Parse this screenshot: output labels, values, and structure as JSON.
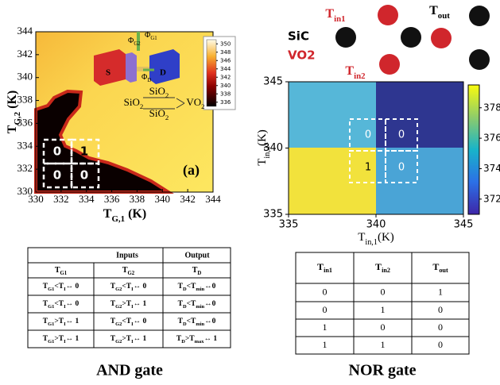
{
  "and_gate": {
    "heatmap": {
      "xlabel": [
        "T",
        "G,1",
        " (K)"
      ],
      "ylabel": [
        "T",
        "G,2",
        " (K)"
      ],
      "xlim": [
        330,
        344
      ],
      "ylim": [
        330,
        344
      ],
      "xticks": [
        330,
        332,
        334,
        336,
        338,
        340,
        342,
        344
      ],
      "yticks": [
        330,
        332,
        334,
        336,
        338,
        340,
        342,
        344
      ],
      "colorbar_lim": [
        335,
        351
      ],
      "colorbar_ticks": [
        336,
        338,
        340,
        342,
        344,
        346,
        348,
        350
      ],
      "cell_labels": [
        "0",
        "1",
        "0",
        "0"
      ],
      "panel_label": "(a)",
      "inset": {
        "source": "S",
        "drain": "D",
        "phi_g2": [
          "Φ",
          "G2"
        ],
        "phi_g1": [
          "Φ",
          "G1"
        ],
        "phi_d": [
          "Φ",
          "D"
        ],
        "oxide_top": [
          "SiO",
          "2"
        ],
        "oxide_left": [
          "SiO",
          "2"
        ],
        "oxide_bottom": [
          "SiO",
          "2"
        ],
        "vo2": [
          "VO",
          "2"
        ]
      }
    },
    "table": {
      "group_headers": [
        "Inputs",
        "Output"
      ],
      "headers": [
        [
          "T",
          "G1"
        ],
        [
          "T",
          "G2"
        ],
        [
          "T",
          "D"
        ]
      ],
      "rows": [
        [
          [
            "T",
            "G1",
            "<T",
            "I",
            "↔ 0"
          ],
          [
            "T",
            "G2",
            "<T",
            "I",
            "↔ 0"
          ],
          [
            "T",
            "D",
            "<T",
            "min",
            "↔0"
          ]
        ],
        [
          [
            "T",
            "G1",
            "<T",
            "I",
            "↔ 0"
          ],
          [
            "T",
            "G2",
            ">T",
            "I",
            "↔ 1"
          ],
          [
            "T",
            "D",
            "<T",
            "min",
            "↔0"
          ]
        ],
        [
          [
            "T",
            "G1",
            ">T",
            "I",
            "↔ 1"
          ],
          [
            "T",
            "G2",
            "<T",
            "I",
            "↔ 0"
          ],
          [
            "T",
            "D",
            "<T",
            "min",
            "↔0"
          ]
        ],
        [
          [
            "T",
            "G1",
            ">T",
            "I",
            "↔ 1"
          ],
          [
            "T",
            "G2",
            ">T",
            "I",
            "↔ 1"
          ],
          [
            "T",
            "D",
            ">T",
            "max",
            "↔ 1"
          ]
        ]
      ]
    },
    "caption": "AND gate"
  },
  "nor_gate": {
    "legend": {
      "sic": "SiC",
      "vo2": "VO2",
      "t_in1": [
        "T",
        "in1"
      ],
      "t_in2": [
        "T",
        "in2"
      ],
      "t_out": [
        "T",
        "out"
      ]
    },
    "heatmap": {
      "xlabel": [
        "T",
        "in,1",
        "(K)"
      ],
      "ylabel": [
        "T",
        "in,2",
        "(K)"
      ],
      "xlim": [
        335,
        345
      ],
      "ylim": [
        335,
        345
      ],
      "xticks": [
        335,
        340,
        345
      ],
      "yticks": [
        335,
        340,
        345
      ],
      "colorbar_lim": [
        371,
        379.5
      ],
      "colorbar_ticks": [
        372,
        374,
        376,
        378
      ],
      "cell_labels": [
        "0",
        "0",
        "1",
        "0"
      ]
    },
    "table": {
      "headers": [
        [
          "T",
          "in1"
        ],
        [
          "T",
          "in2"
        ],
        [
          "T",
          "out"
        ]
      ],
      "rows": [
        [
          "0",
          "0",
          "1"
        ],
        [
          "0",
          "1",
          "0"
        ],
        [
          "1",
          "0",
          "0"
        ],
        [
          "1",
          "1",
          "0"
        ]
      ]
    },
    "caption": "NOR gate"
  }
}
